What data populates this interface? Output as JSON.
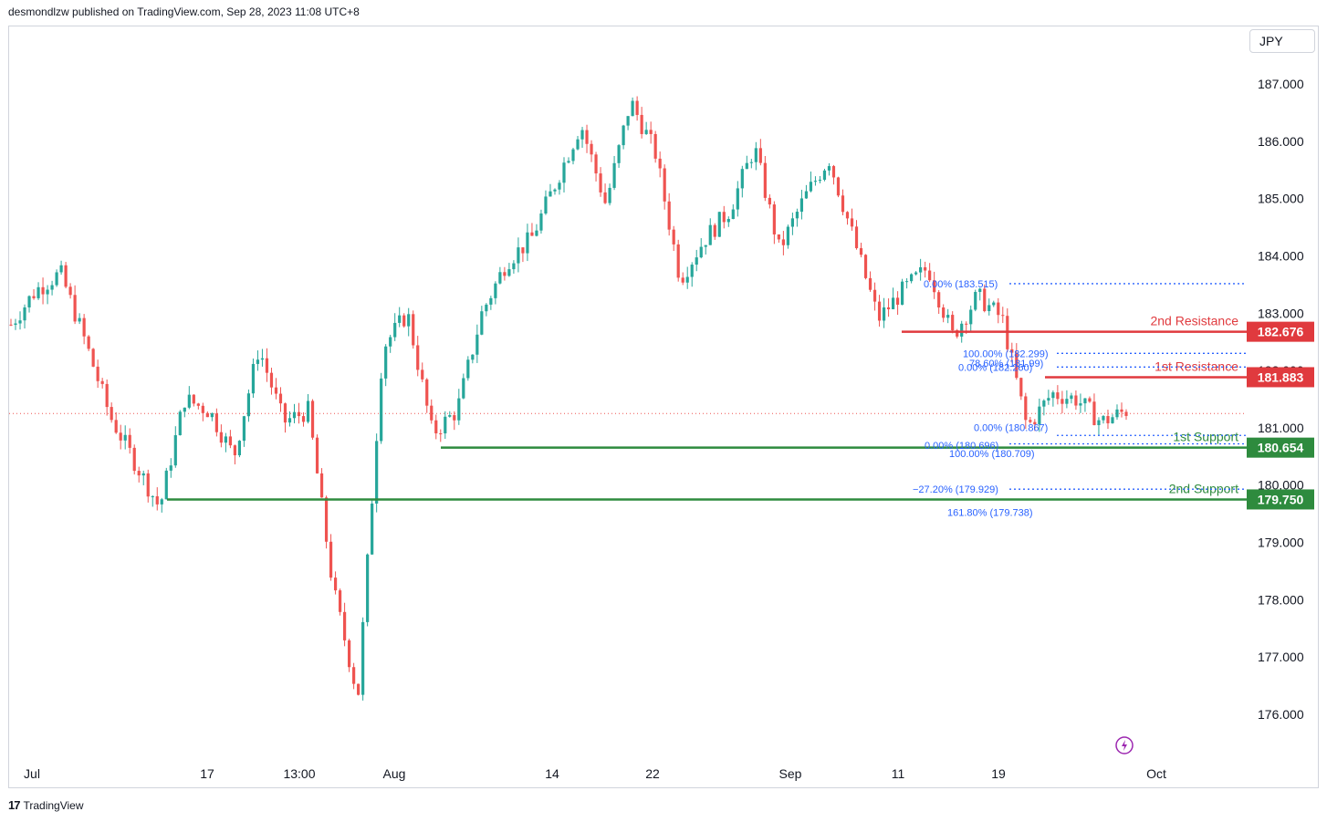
{
  "header": {
    "published_line": "desmondlzw published on TradingView.com, Sep 28, 2023 11:08 UTC+8",
    "currency_label": "JPY"
  },
  "footer": {
    "brand": "TradingView",
    "logo_mark": "17"
  },
  "chart_data": {
    "type": "candlestick",
    "y_axis": {
      "ticks": [
        "187.000",
        "186.000",
        "185.000",
        "184.000",
        "183.000",
        "182.000",
        "181.000",
        "180.000",
        "179.000",
        "178.000",
        "177.000",
        "176.000"
      ],
      "ylim": [
        175.7,
        187.5
      ]
    },
    "x_axis": {
      "ticks": [
        "Jul",
        "17",
        "13:00",
        "Aug",
        "14",
        "22",
        "Sep",
        "11",
        "19",
        "Oct"
      ]
    },
    "price_series_approx": [
      {
        "date": "Jul 3",
        "close": 182.8
      },
      {
        "date": "Jul 5",
        "close": 183.4
      },
      {
        "date": "Jul 7",
        "close": 183.7
      },
      {
        "date": "Jul 10",
        "close": 182.5
      },
      {
        "date": "Jul 12",
        "close": 181.2
      },
      {
        "date": "Jul 14",
        "close": 180.4
      },
      {
        "date": "Jul 14 low",
        "close": 179.6
      },
      {
        "date": "Jul 17",
        "close": 181.5
      },
      {
        "date": "Jul 19",
        "close": 181.3
      },
      {
        "date": "Jul 21",
        "close": 180.5
      },
      {
        "date": "Jul 24",
        "close": 182.4
      },
      {
        "date": "Jul 26",
        "close": 181.1
      },
      {
        "date": "Jul 27",
        "close": 181.3
      },
      {
        "date": "Jul 28",
        "close": 178.2
      },
      {
        "date": "Jul 28 low",
        "close": 176.3
      },
      {
        "date": "Jul 31",
        "close": 182.4
      },
      {
        "date": "Aug 2",
        "close": 183.0
      },
      {
        "date": "Aug 4",
        "close": 180.9
      },
      {
        "date": "Aug 7",
        "close": 181.3
      },
      {
        "date": "Aug 9",
        "close": 183.0
      },
      {
        "date": "Aug 11",
        "close": 183.9
      },
      {
        "date": "Aug 14",
        "close": 184.3
      },
      {
        "date": "Aug 16",
        "close": 185.3
      },
      {
        "date": "Aug 18",
        "close": 186.3
      },
      {
        "date": "Aug 21",
        "close": 184.9
      },
      {
        "date": "Aug 22",
        "close": 186.7
      },
      {
        "date": "Aug 24",
        "close": 185.8
      },
      {
        "date": "Aug 25",
        "close": 183.6
      },
      {
        "date": "Aug 28",
        "close": 184.3
      },
      {
        "date": "Aug 30",
        "close": 184.8
      },
      {
        "date": "Sep 1",
        "close": 185.9
      },
      {
        "date": "Sep 4",
        "close": 184.1
      },
      {
        "date": "Sep 6",
        "close": 185.0
      },
      {
        "date": "Sep 7",
        "close": 185.7
      },
      {
        "date": "Sep 8",
        "close": 184.3
      },
      {
        "date": "Sep 11",
        "close": 182.9
      },
      {
        "date": "Sep 13",
        "close": 183.4
      },
      {
        "date": "Sep 15",
        "close": 183.8
      },
      {
        "date": "Sep 18",
        "close": 182.6
      },
      {
        "date": "Sep 20",
        "close": 183.3
      },
      {
        "date": "Sep 21",
        "close": 182.9
      },
      {
        "date": "Sep 22",
        "close": 181.0
      },
      {
        "date": "Sep 25",
        "close": 181.6
      },
      {
        "date": "Sep 26",
        "close": 181.5
      },
      {
        "date": "Sep 27",
        "close": 181.1
      },
      {
        "date": "Sep 28",
        "close": 181.3
      }
    ],
    "current_price_line": 181.25,
    "levels": [
      {
        "label": "2nd Resistance",
        "value": "182.676",
        "kind": "resistance",
        "color": "#e03a3e"
      },
      {
        "label": "1st Resistance",
        "value": "181.883",
        "kind": "resistance",
        "color": "#e03a3e"
      },
      {
        "label": "1st Support",
        "value": "180.654",
        "kind": "support",
        "color": "#2e8b3e"
      },
      {
        "label": "2nd Support",
        "value": "179.750",
        "kind": "support",
        "color": "#2e8b3e"
      }
    ],
    "fib_labels": [
      {
        "text": "0.00% (183.515)",
        "price": 183.515
      },
      {
        "text": "100.00% (182.299)",
        "price": 182.299
      },
      {
        "text": "0.00% (182.260)",
        "price": 182.06
      },
      {
        "text": "78.60% (181.99)",
        "price": 182.13
      },
      {
        "text": "0.00% (180.867)",
        "price": 181.01
      },
      {
        "text": "0.00% (180.696)",
        "price": 180.696
      },
      {
        "text": "100.00% (180.709)",
        "price": 180.55
      },
      {
        "text": "−27.20% (179.929)",
        "price": 179.929
      },
      {
        "text": "161.80% (179.738)",
        "price": 179.53
      }
    ],
    "colors": {
      "up": "#26a69a",
      "down": "#ef5350",
      "resistance": "#e03a3e",
      "support": "#2e8b3e",
      "fib": "#2962ff"
    }
  }
}
